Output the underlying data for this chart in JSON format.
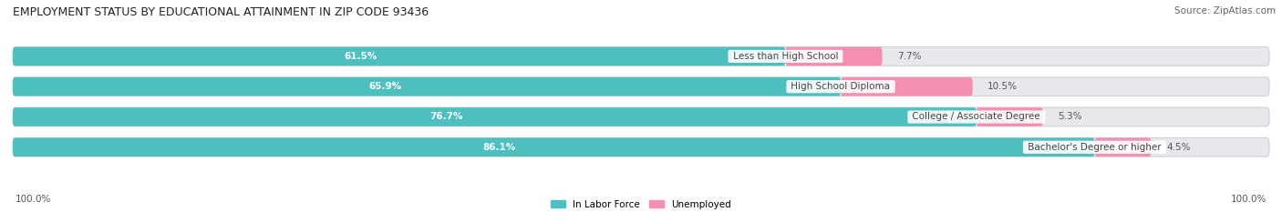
{
  "title": "EMPLOYMENT STATUS BY EDUCATIONAL ATTAINMENT IN ZIP CODE 93436",
  "source": "Source: ZipAtlas.com",
  "categories": [
    "Less than High School",
    "High School Diploma",
    "College / Associate Degree",
    "Bachelor's Degree or higher"
  ],
  "labor_force": [
    61.5,
    65.9,
    76.7,
    86.1
  ],
  "unemployed": [
    7.7,
    10.5,
    5.3,
    4.5
  ],
  "labor_color": "#4DBFBF",
  "unemployed_color": "#F48FB1",
  "bar_bg_color": "#E8E8EC",
  "bar_border_color": "#D0D0D8",
  "fig_bg_color": "#FFFFFF",
  "label_color_labor": "#FFFFFF",
  "label_color_unemp": "#555555",
  "category_text_color": "#444444",
  "title_fontsize": 9,
  "source_fontsize": 7.5,
  "label_fontsize": 7.5,
  "category_fontsize": 7.5,
  "legend_fontsize": 7.5,
  "tick_fontsize": 7.5,
  "left_tick": "100.0%",
  "right_tick": "100.0%"
}
